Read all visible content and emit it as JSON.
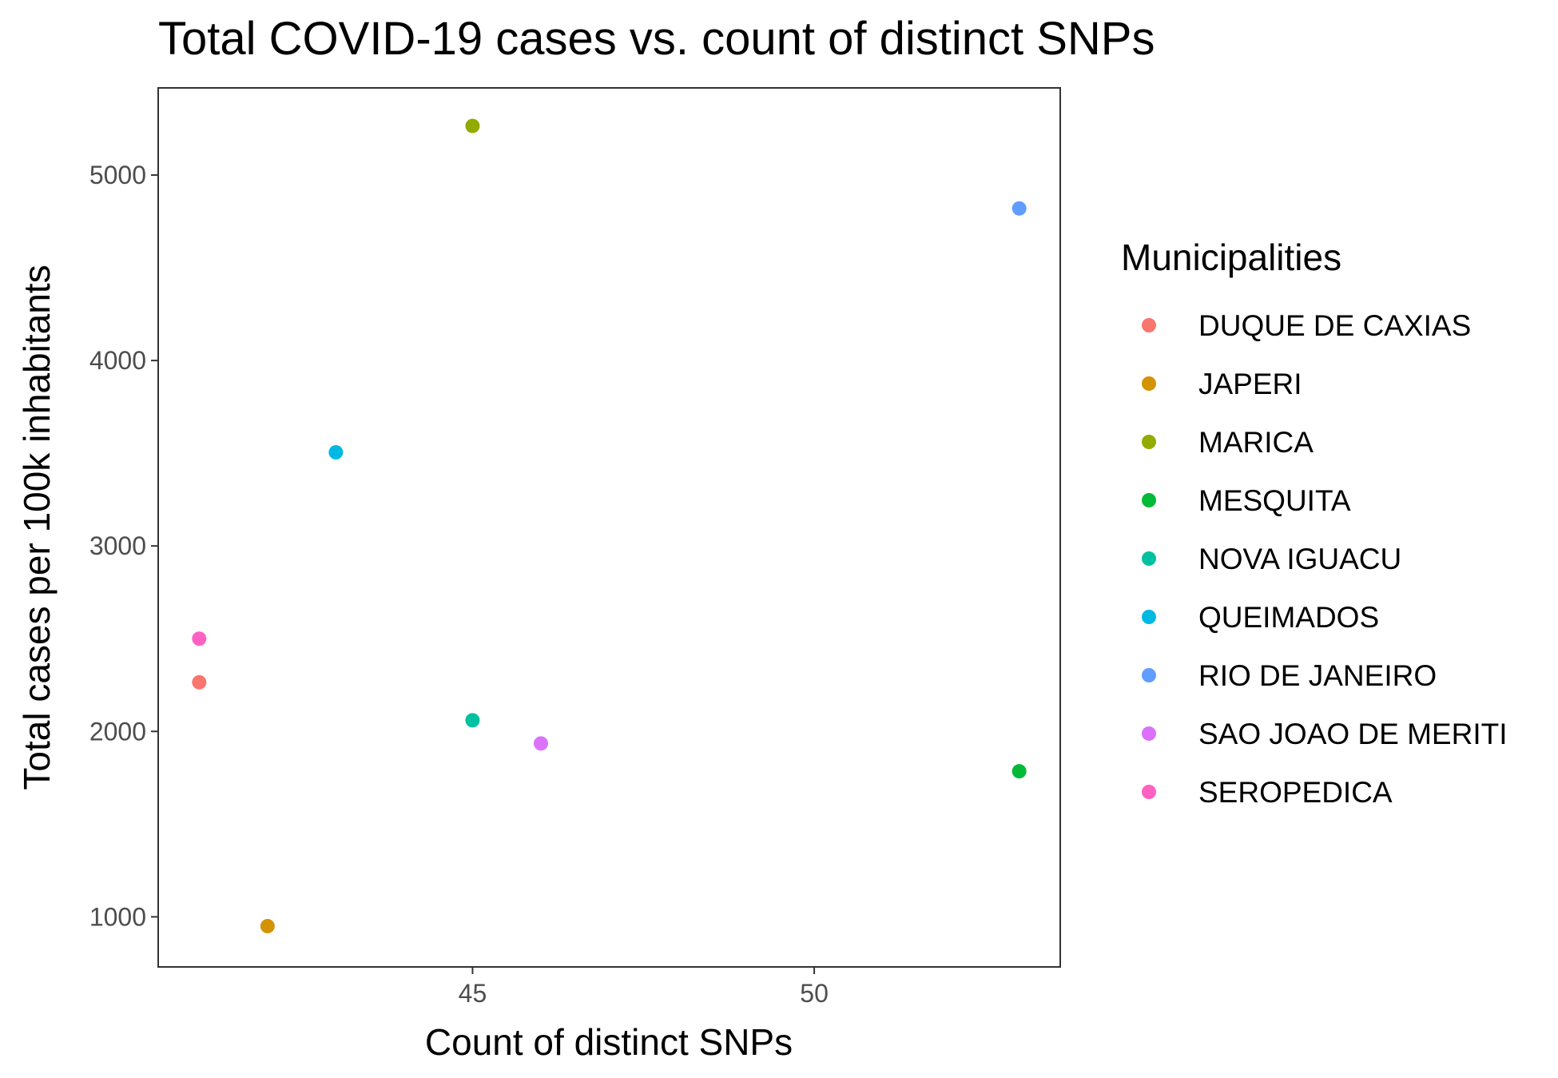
{
  "chart_data": {
    "type": "scatter",
    "title": "Total COVID-19 cases vs. count of distinct SNPs",
    "xlabel": "Count of distinct SNPs",
    "ylabel": "Total cases per 100k inhabitants",
    "xlim": [
      40.4,
      53.6
    ],
    "ylim": [
      730,
      5470
    ],
    "xticks": [
      45,
      50
    ],
    "xtick_labels": [
      "45",
      "50"
    ],
    "yticks": [
      1000,
      2000,
      3000,
      4000,
      5000
    ],
    "ytick_labels": [
      "1000",
      "2000",
      "3000",
      "4000",
      "5000"
    ],
    "grid": false,
    "legend": {
      "title": "Municipalities",
      "position": "right"
    },
    "series": [
      {
        "name": "DUQUE DE CAXIAS",
        "color": "#F8766D",
        "points": [
          {
            "x": 41,
            "y": 2265
          }
        ]
      },
      {
        "name": "JAPERI",
        "color": "#D39200",
        "points": [
          {
            "x": 42,
            "y": 950
          }
        ]
      },
      {
        "name": "MARICA",
        "color": "#93AA00",
        "points": [
          {
            "x": 45,
            "y": 5265
          }
        ]
      },
      {
        "name": "MESQUITA",
        "color": "#00BA38",
        "points": [
          {
            "x": 53,
            "y": 1785
          }
        ]
      },
      {
        "name": "NOVA IGUACU",
        "color": "#00C19F",
        "points": [
          {
            "x": 45,
            "y": 2060
          }
        ]
      },
      {
        "name": "QUEIMADOS",
        "color": "#00B9E3",
        "points": [
          {
            "x": 43,
            "y": 3505
          }
        ]
      },
      {
        "name": "RIO DE JANEIRO",
        "color": "#619CFF",
        "points": [
          {
            "x": 53,
            "y": 4820
          }
        ]
      },
      {
        "name": "SAO JOAO DE MERITI",
        "color": "#DB72FB",
        "points": [
          {
            "x": 46,
            "y": 1935
          }
        ]
      },
      {
        "name": "SEROPEDICA",
        "color": "#FF61C3",
        "points": [
          {
            "x": 41,
            "y": 2500
          }
        ]
      }
    ]
  }
}
